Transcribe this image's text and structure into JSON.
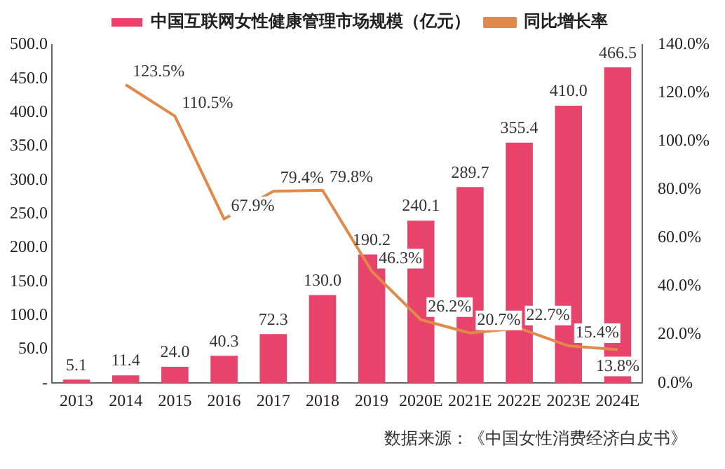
{
  "chart_data": {
    "type": "bar",
    "categories": [
      "2013",
      "2014",
      "2015",
      "2016",
      "2017",
      "2018",
      "2019",
      "2020E",
      "2021E",
      "2022E",
      "2023E",
      "2024E"
    ],
    "series": [
      {
        "name": "中国互联网女性健康管理市场规模（亿元）",
        "color": "#e8436a",
        "values": [
          5.1,
          11.4,
          24.0,
          40.3,
          72.3,
          130.0,
          190.2,
          240.1,
          289.7,
          355.4,
          410.0,
          466.5
        ],
        "value_labels": [
          "5.1",
          "11.4",
          "24.0",
          "40.3",
          "72.3",
          "130.0",
          "190.2",
          "240.1",
          "289.7",
          "355.4",
          "410.0",
          "466.5"
        ]
      },
      {
        "name": "同比增长率",
        "type": "line",
        "axis": "y2",
        "color": "#e0894a",
        "values": [
          null,
          123.5,
          110.5,
          67.9,
          79.4,
          79.8,
          46.3,
          26.2,
          20.7,
          22.7,
          15.4,
          13.8
        ],
        "value_labels": [
          null,
          "123.5%",
          "110.5%",
          "67.9%",
          "79.4%",
          "79.8%",
          "46.3%",
          "26.2%",
          "20.7%",
          "22.7%",
          "15.4%",
          "13.8%"
        ]
      }
    ],
    "ylim": [
      0,
      500
    ],
    "yticks": [
      {
        "value": 0,
        "label": "-"
      },
      {
        "value": 50,
        "label": "50.0"
      },
      {
        "value": 100,
        "label": "100.0"
      },
      {
        "value": 150,
        "label": "150.0"
      },
      {
        "value": 200,
        "label": "200.0"
      },
      {
        "value": 250,
        "label": "250.0"
      },
      {
        "value": 300,
        "label": "300.0"
      },
      {
        "value": 350,
        "label": "350.0"
      },
      {
        "value": 400,
        "label": "400.0"
      },
      {
        "value": 450,
        "label": "450.0"
      },
      {
        "value": 500,
        "label": "500.0"
      }
    ],
    "y2lim": [
      0,
      140
    ],
    "y2ticks": [
      {
        "value": 0,
        "label": "0.0%"
      },
      {
        "value": 20,
        "label": "20.0%"
      },
      {
        "value": 40,
        "label": "40.0%"
      },
      {
        "value": 60,
        "label": "60.0%"
      },
      {
        "value": 80,
        "label": "80.0%"
      },
      {
        "value": 100,
        "label": "100.0%"
      },
      {
        "value": 120,
        "label": "120.0%"
      },
      {
        "value": 140,
        "label": "140.0%"
      }
    ],
    "grid": false,
    "legend": "top",
    "marker": "none",
    "annotations": [
      "数据来源：《中国女性消费经济白皮书》"
    ]
  }
}
